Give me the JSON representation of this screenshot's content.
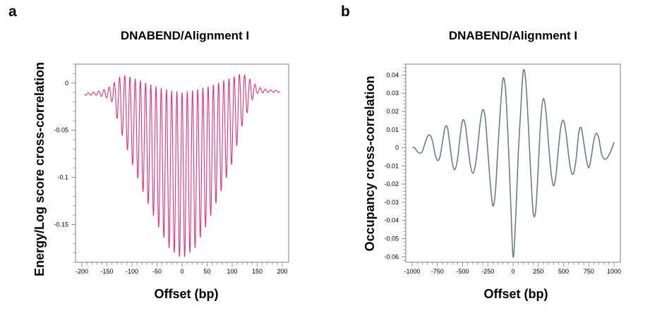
{
  "figure": {
    "panels": [
      {
        "letter": "a"
      },
      {
        "letter": "b"
      }
    ]
  },
  "chart_data": [
    {
      "type": "line",
      "title": "DNABEND/Alignment I",
      "xlabel": "Offset (bp)",
      "ylabel": "Energy/Log score cross-correlation",
      "xlim": [
        -200,
        200
      ],
      "ylim": [
        -0.19,
        0.02
      ],
      "xticks": [
        -200,
        -150,
        -100,
        -50,
        0,
        50,
        100,
        150,
        200
      ],
      "xtick_labels": [
        "-200",
        "-150",
        "-100",
        "-50",
        "0",
        "50",
        "100",
        "150",
        "200"
      ],
      "yticks": [
        0,
        -0.05,
        -0.1,
        -0.15
      ],
      "ytick_labels": [
        "0",
        "-0.05",
        "-0.1",
        "-0.15"
      ],
      "series": [
        {
          "name": "energy-log-score-xcorr",
          "color": "#e0307f",
          "model": "oscillation",
          "x_range": [
            -195,
            195
          ],
          "period_bp": 10.4,
          "upper_envelope": [
            [
              -195,
              -0.011
            ],
            [
              -170,
              -0.009
            ],
            [
              -150,
              -0.006
            ],
            [
              -140,
              -0.002
            ],
            [
              -120,
              0.009
            ],
            [
              -100,
              0.006
            ],
            [
              -80,
              0.002
            ],
            [
              -50,
              -0.004
            ],
            [
              0,
              -0.01
            ],
            [
              50,
              -0.004
            ],
            [
              80,
              0.002
            ],
            [
              100,
              0.006
            ],
            [
              120,
              0.011
            ],
            [
              140,
              0.002
            ],
            [
              150,
              -0.004
            ],
            [
              170,
              -0.007
            ],
            [
              195,
              -0.008
            ]
          ],
          "lower_envelope": [
            [
              -195,
              -0.013
            ],
            [
              -170,
              -0.013
            ],
            [
              -150,
              -0.016
            ],
            [
              -140,
              -0.02
            ],
            [
              -120,
              -0.055
            ],
            [
              -100,
              -0.085
            ],
            [
              -80,
              -0.113
            ],
            [
              -50,
              -0.15
            ],
            [
              -25,
              -0.176
            ],
            [
              0,
              -0.187
            ],
            [
              25,
              -0.176
            ],
            [
              50,
              -0.15
            ],
            [
              80,
              -0.112
            ],
            [
              100,
              -0.085
            ],
            [
              120,
              -0.045
            ],
            [
              140,
              -0.018
            ],
            [
              150,
              -0.011
            ],
            [
              170,
              -0.01
            ],
            [
              195,
              -0.01
            ]
          ]
        }
      ]
    },
    {
      "type": "line",
      "title": "DNABEND/Alignment I",
      "xlabel": "Offset (bp)",
      "ylabel": "Occupancy cross-correlation",
      "xlim": [
        -1000,
        1000
      ],
      "ylim": [
        -0.063,
        0.046
      ],
      "xticks": [
        -1000,
        -750,
        -500,
        -250,
        0,
        250,
        500,
        750,
        1000
      ],
      "xtick_labels": [
        "-1000",
        "-750",
        "-500",
        "-250",
        "0",
        "250",
        "500",
        "750",
        "1000"
      ],
      "yticks": [
        0.04,
        0.03,
        0.02,
        0.01,
        0,
        -0.01,
        -0.02,
        -0.03,
        -0.04,
        -0.05,
        -0.06
      ],
      "ytick_labels": [
        "0.04",
        "0.03",
        "0.02",
        "0.01",
        "0",
        "-0.01",
        "-0.02",
        "-0.03",
        "-0.04",
        "-0.05",
        "-0.06"
      ],
      "series": [
        {
          "name": "occupancy-xcorr",
          "color": "#6a7d8a",
          "points": [
            [
              -1000,
              0.0
            ],
            [
              -975,
              0.0
            ],
            [
              -950,
              -0.002
            ],
            [
              -925,
              -0.003
            ],
            [
              -900,
              -0.002
            ],
            [
              -875,
              0.002
            ],
            [
              -850,
              0.006
            ],
            [
              -825,
              0.007
            ],
            [
              -800,
              0.004
            ],
            [
              -775,
              -0.003
            ],
            [
              -750,
              -0.007
            ],
            [
              -725,
              -0.005
            ],
            [
              -700,
              0.003
            ],
            [
              -675,
              0.011
            ],
            [
              -650,
              0.011
            ],
            [
              -625,
              0.001
            ],
            [
              -600,
              -0.009
            ],
            [
              -575,
              -0.012
            ],
            [
              -550,
              -0.006
            ],
            [
              -525,
              0.006
            ],
            [
              -500,
              0.015
            ],
            [
              -475,
              0.013
            ],
            [
              -450,
              0.002
            ],
            [
              -425,
              -0.009
            ],
            [
              -400,
              -0.014
            ],
            [
              -375,
              -0.01
            ],
            [
              -350,
              0.001
            ],
            [
              -325,
              0.014
            ],
            [
              -300,
              0.021
            ],
            [
              -275,
              0.016
            ],
            [
              -250,
              -0.002
            ],
            [
              -225,
              -0.02
            ],
            [
              -200,
              -0.032
            ],
            [
              -175,
              -0.024
            ],
            [
              -150,
              0.0
            ],
            [
              -125,
              0.022
            ],
            [
              -100,
              0.038
            ],
            [
              -75,
              0.032
            ],
            [
              -50,
              0.006
            ],
            [
              -25,
              -0.028
            ],
            [
              0,
              -0.06
            ],
            [
              25,
              -0.04
            ],
            [
              50,
              -0.005
            ],
            [
              75,
              0.02
            ],
            [
              100,
              0.042
            ],
            [
              125,
              0.037
            ],
            [
              150,
              0.014
            ],
            [
              175,
              -0.014
            ],
            [
              200,
              -0.036
            ],
            [
              225,
              -0.034
            ],
            [
              250,
              -0.01
            ],
            [
              275,
              0.016
            ],
            [
              300,
              0.027
            ],
            [
              325,
              0.02
            ],
            [
              350,
              0.003
            ],
            [
              375,
              -0.013
            ],
            [
              400,
              -0.021
            ],
            [
              425,
              -0.015
            ],
            [
              450,
              0.0
            ],
            [
              475,
              0.012
            ],
            [
              500,
              0.015
            ],
            [
              525,
              0.008
            ],
            [
              550,
              -0.004
            ],
            [
              575,
              -0.013
            ],
            [
              600,
              -0.014
            ],
            [
              625,
              -0.006
            ],
            [
              650,
              0.008
            ],
            [
              675,
              0.011
            ],
            [
              700,
              0.003
            ],
            [
              725,
              -0.006
            ],
            [
              750,
              -0.011
            ],
            [
              775,
              -0.005
            ],
            [
              800,
              0.004
            ],
            [
              825,
              0.008
            ],
            [
              850,
              0.005
            ],
            [
              875,
              -0.003
            ],
            [
              900,
              -0.006
            ],
            [
              925,
              -0.006
            ],
            [
              950,
              -0.004
            ],
            [
              975,
              -0.001
            ],
            [
              1000,
              0.003
            ]
          ]
        }
      ]
    }
  ]
}
